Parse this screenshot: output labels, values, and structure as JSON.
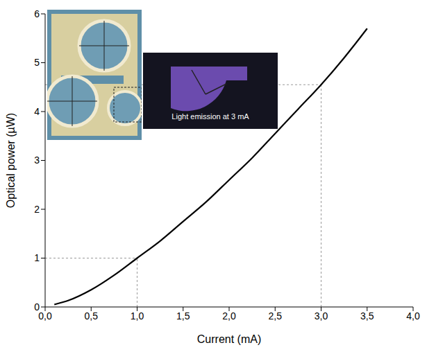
{
  "chart_data": {
    "type": "line",
    "x_label": "Current (mA)",
    "y_label": "Optical power (µW)",
    "annotation": "Light emission at 3 mA",
    "series": [
      {
        "name": "Optical power",
        "color": "#000000",
        "line_style": "solid",
        "marker": "none",
        "x": [
          0.1,
          0.25,
          0.5,
          0.75,
          1.0,
          1.25,
          1.5,
          1.75,
          2.0,
          2.25,
          2.5,
          2.75,
          3.0,
          3.25,
          3.5
        ],
        "values": [
          0.05,
          0.13,
          0.35,
          0.65,
          1.0,
          1.35,
          1.75,
          2.15,
          2.6,
          3.05,
          3.55,
          4.05,
          4.55,
          5.1,
          5.7
        ]
      }
    ],
    "reference_points": [
      {
        "x": 1.0,
        "y": 1.0
      },
      {
        "x": 3.0,
        "y": 4.55
      }
    ],
    "xlim": [
      0,
      4
    ],
    "xticks": [
      {
        "value": 0,
        "label": "0,0"
      },
      {
        "value": 0.5,
        "label": "0,5"
      },
      {
        "value": 1,
        "label": "1,0"
      },
      {
        "value": 1.5,
        "label": "1,5"
      },
      {
        "value": 2,
        "label": "2,0"
      },
      {
        "value": 2.5,
        "label": "2,5"
      },
      {
        "value": 3,
        "label": "3,0"
      },
      {
        "value": 3.5,
        "label": "3,5"
      },
      {
        "value": 4,
        "label": "4,0"
      }
    ],
    "ylim": [
      0,
      6
    ],
    "yticks": [
      0,
      1,
      2,
      3,
      4,
      5,
      6
    ],
    "grid": false
  }
}
